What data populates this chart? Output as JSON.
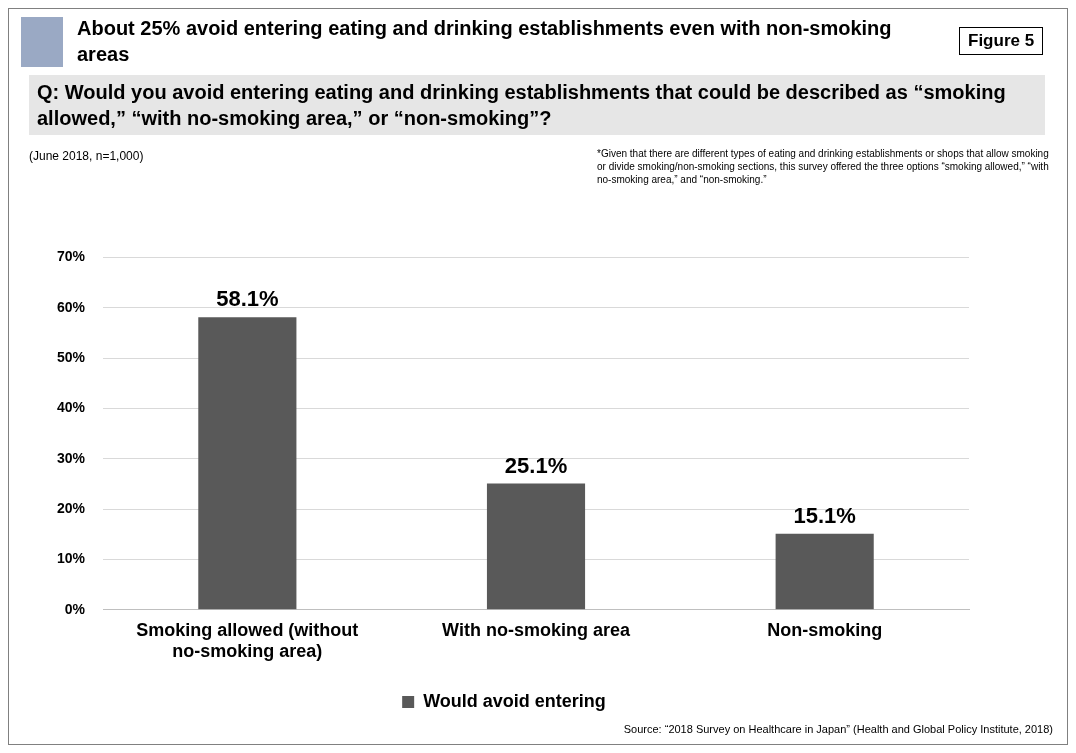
{
  "chart_data": {
    "type": "bar",
    "title": "About 25% avoid entering eating and drinking establishments even with non-smoking areas",
    "subtitle": "Q: Would you avoid entering eating and drinking establishments that could be described as “smoking allowed,” “with no-smoking area,” or “non-smoking”?",
    "annotations": [
      "Figure 5",
      "(June 2018, n=1,000)",
      "*Given that there are different types of eating and drinking establishments or shops that allow smoking or divide smoking/non-smoking sections, this survey offered the three options  “smoking allowed,” “with no-smoking area,” and “non-smoking.”",
      "Source: “2018 Survey on Healthcare in Japan” (Health and Global Policy Institute, 2018)"
    ],
    "categories": [
      "Smoking allowed (without no-smoking area)",
      "With no-smoking area",
      "Non-smoking"
    ],
    "series": [
      {
        "name": "Would avoid entering",
        "color": "#595959",
        "values": [
          58.1,
          25.1,
          15.1
        ],
        "value_labels": [
          "58.1%",
          "25.1%",
          "15.1%"
        ]
      }
    ],
    "ylim": [
      0,
      70
    ],
    "yticks": [
      {
        "value": 0,
        "label": "0%"
      },
      {
        "value": 10,
        "label": "10%"
      },
      {
        "value": 20,
        "label": "20%"
      },
      {
        "value": 30,
        "label": "30%"
      },
      {
        "value": 40,
        "label": "40%"
      },
      {
        "value": 50,
        "label": "50%"
      },
      {
        "value": 60,
        "label": "60%"
      },
      {
        "value": 70,
        "label": "70%"
      }
    ],
    "grid": "y",
    "legend": "bottom"
  }
}
